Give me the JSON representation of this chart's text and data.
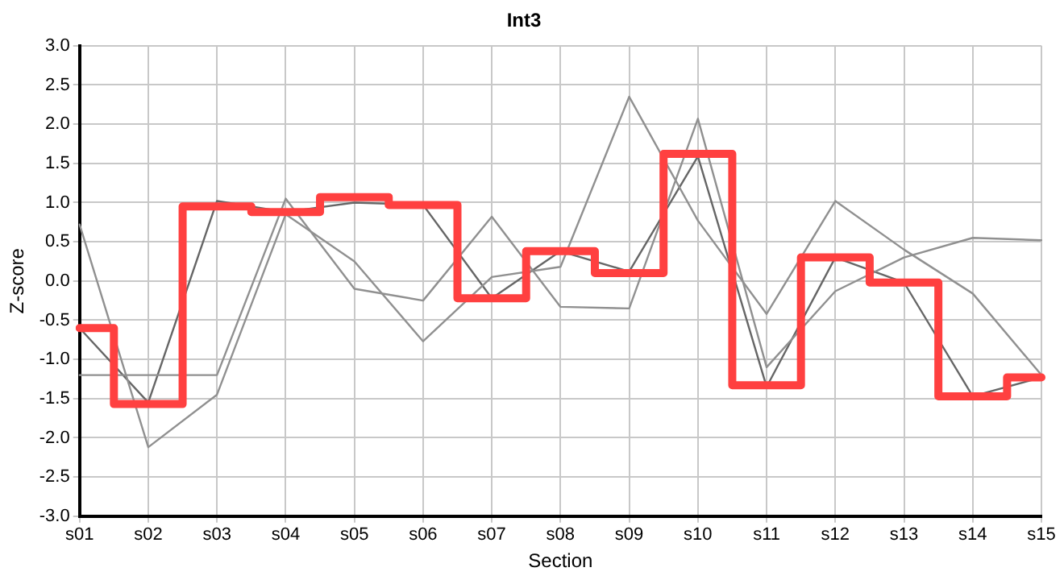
{
  "chart_data": {
    "type": "line",
    "title": "Int3",
    "xlabel": "Section",
    "ylabel": "Z-score",
    "categories": [
      "s01",
      "s02",
      "s03",
      "s04",
      "s05",
      "s06",
      "s07",
      "s08",
      "s09",
      "s10",
      "s11",
      "s12",
      "s13",
      "s14",
      "s15"
    ],
    "series": [
      {
        "type": "line",
        "color": "#909090",
        "values": [
          0.72,
          -2.12,
          -1.45,
          0.85,
          0.25,
          -0.77,
          0.05,
          0.18,
          2.35,
          0.77,
          -0.42,
          1.02,
          0.4,
          -0.16,
          -1.2
        ]
      },
      {
        "type": "line",
        "color": "#909090",
        "values": [
          -1.2,
          -1.2,
          -1.2,
          1.05,
          -0.1,
          -0.25,
          0.82,
          -0.33,
          -0.35,
          2.07,
          -1.1,
          -0.13,
          0.3,
          0.55,
          0.52
        ]
      },
      {
        "type": "line",
        "color": "#666666",
        "values": [
          -0.6,
          -1.55,
          1.02,
          0.88,
          1.0,
          0.97,
          -0.22,
          0.38,
          0.12,
          1.59,
          -1.35,
          0.3,
          -0.02,
          -1.47,
          -1.23
        ]
      },
      {
        "type": "step",
        "color": "#ff4040",
        "values": [
          -0.6,
          -1.57,
          0.95,
          0.88,
          1.07,
          0.97,
          -0.22,
          0.38,
          0.1,
          1.62,
          -1.33,
          0.3,
          -0.02,
          -1.47,
          -1.23
        ]
      }
    ],
    "ylim": [
      -3,
      3
    ],
    "yticks": [
      {
        "value": -3,
        "label": "-3.0"
      },
      {
        "value": -2.5,
        "label": "-2.5"
      },
      {
        "value": -2,
        "label": "-2.0"
      },
      {
        "value": -1.5,
        "label": "-1.5"
      },
      {
        "value": -1,
        "label": "-1.0"
      },
      {
        "value": -0.5,
        "label": "-0.5"
      },
      {
        "value": 0,
        "label": "0.0"
      },
      {
        "value": 0.5,
        "label": "0.5"
      },
      {
        "value": 1,
        "label": "1.0"
      },
      {
        "value": 1.5,
        "label": "1.5"
      },
      {
        "value": 2,
        "label": "2.0"
      },
      {
        "value": 2.5,
        "label": "2.5"
      },
      {
        "value": 3,
        "label": "3.0"
      }
    ],
    "grid": true,
    "legend": false,
    "marker": "none",
    "line_style": "solid"
  }
}
